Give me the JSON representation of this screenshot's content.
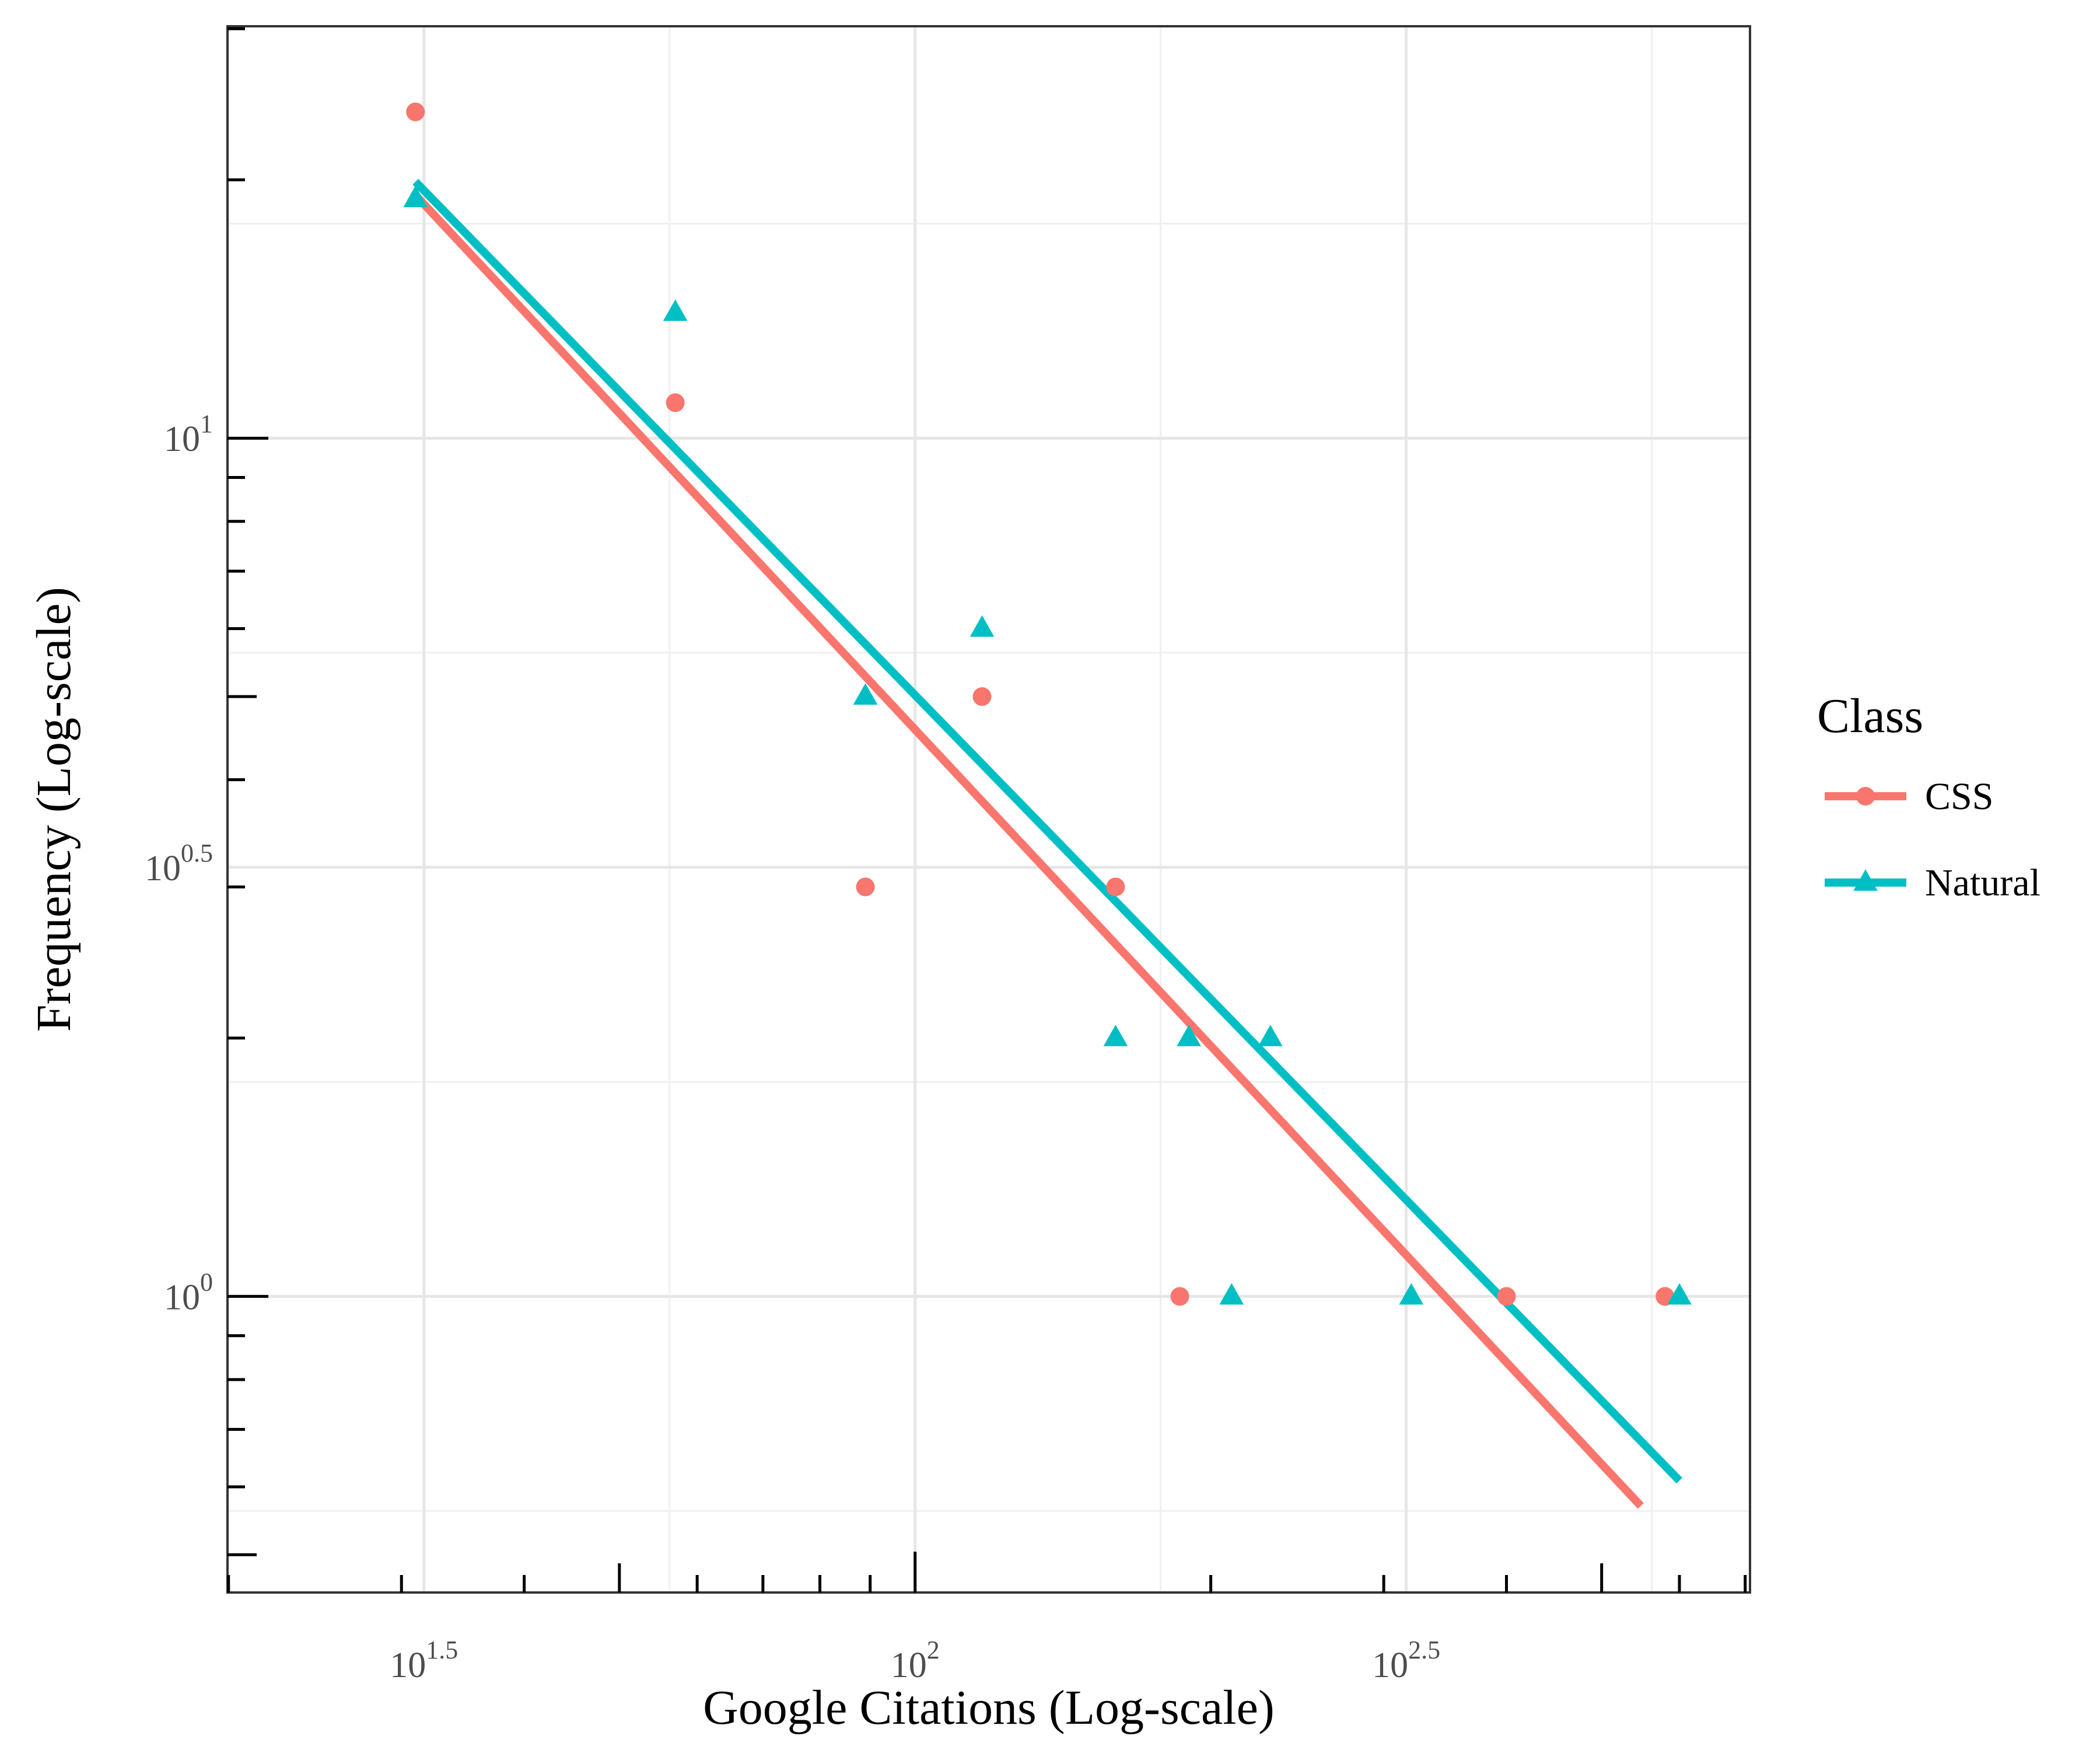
{
  "chart_data": {
    "type": "scatter",
    "xlabel": "Google Citations (Log-scale)",
    "ylabel": "Frequency (Log-scale)",
    "x_scale": "log10",
    "y_scale": "log10",
    "xlim_log10": [
      1.3,
      2.85
    ],
    "ylim_log10": [
      -0.345,
      1.48
    ],
    "x_ticks": [
      {
        "base": "10",
        "exp": "1.5",
        "value": 1.5
      },
      {
        "base": "10",
        "exp": "2",
        "value": 2.0
      },
      {
        "base": "10",
        "exp": "2.5",
        "value": 2.5
      }
    ],
    "y_ticks": [
      {
        "base": "10",
        "exp": "0",
        "value": 0.0
      },
      {
        "base": "10",
        "exp": "0.5",
        "value": 0.5
      },
      {
        "base": "10",
        "exp": "1",
        "value": 1.0
      }
    ],
    "grid": true,
    "legend": {
      "title": "Class",
      "position": "right"
    },
    "series": [
      {
        "name": "CSS",
        "color": "#F8766D",
        "marker": "circle",
        "points": [
          {
            "x": 31,
            "y": 24
          },
          {
            "x": 57,
            "y": 11
          },
          {
            "x": 89,
            "y": 3
          },
          {
            "x": 117,
            "y": 5
          },
          {
            "x": 160,
            "y": 3
          },
          {
            "x": 186,
            "y": 1
          },
          {
            "x": 400,
            "y": 1
          },
          {
            "x": 580,
            "y": 1
          }
        ],
        "fit": {
          "x": [
            31,
            548
          ],
          "y": [
            19.2,
            0.57
          ]
        }
      },
      {
        "name": "Natural",
        "color": "#00BFC4",
        "marker": "triangle",
        "points": [
          {
            "x": 31,
            "y": 19
          },
          {
            "x": 57,
            "y": 14
          },
          {
            "x": 89,
            "y": 5
          },
          {
            "x": 117,
            "y": 6
          },
          {
            "x": 160,
            "y": 2
          },
          {
            "x": 190,
            "y": 2
          },
          {
            "x": 210,
            "y": 1
          },
          {
            "x": 230,
            "y": 2
          },
          {
            "x": 320,
            "y": 1
          },
          {
            "x": 600,
            "y": 1
          }
        ],
        "fit": {
          "x": [
            31,
            600
          ],
          "y": [
            19.9,
            0.61
          ]
        }
      }
    ]
  }
}
